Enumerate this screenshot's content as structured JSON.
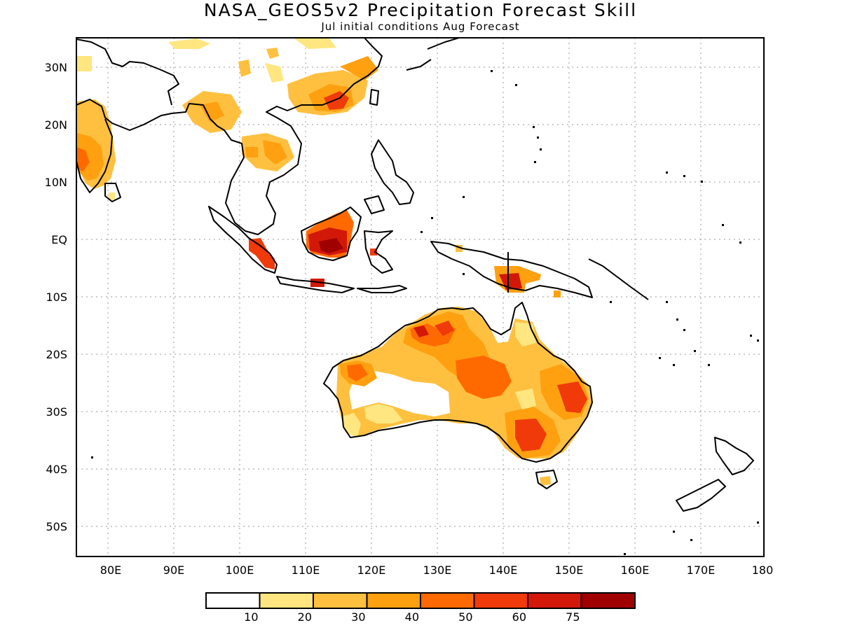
{
  "title": "NASA_GEOS5v2 Precipitation Forecast Skill",
  "subtitle": "Jul initial conditions   Aug Forecast",
  "axes": {
    "x_ticks": [
      "80E",
      "90E",
      "100E",
      "110E",
      "120E",
      "130E",
      "140E",
      "150E",
      "160E",
      "170E",
      "180"
    ],
    "y_ticks": [
      "30N",
      "20N",
      "10N",
      "EQ",
      "10S",
      "20S",
      "30S",
      "40S",
      "50S"
    ]
  },
  "colorbar": {
    "labels": [
      "10",
      "20",
      "30",
      "40",
      "50",
      "60",
      "75"
    ],
    "colors": [
      "#ffffff",
      "#ffe680",
      "#ffc040",
      "#ffa010",
      "#ff6a00",
      "#f03a0a",
      "#d21808",
      "#a00000"
    ]
  },
  "map": {
    "lon_range": [
      75,
      180
    ],
    "lat_range": [
      -55,
      35
    ],
    "grid": "dotted",
    "outline_color": "#000000"
  }
}
